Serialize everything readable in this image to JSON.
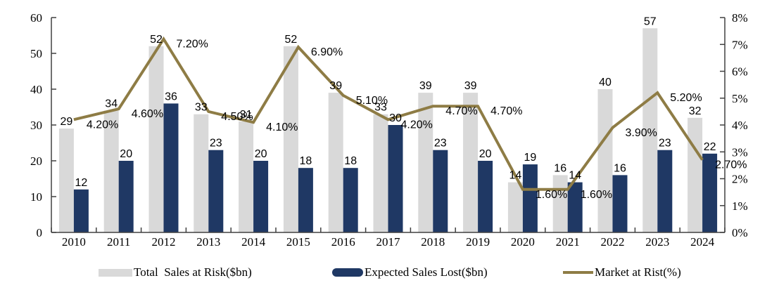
{
  "chart_data": {
    "type": "combo-bar-line",
    "title": "",
    "categories": [
      "2010",
      "2011",
      "2012",
      "2013",
      "2014",
      "2015",
      "2016",
      "2017",
      "2018",
      "2019",
      "2020",
      "2021",
      "2022",
      "2023",
      "2024"
    ],
    "series": [
      {
        "name": "Total  Sales at Risk($bn)",
        "type": "bar",
        "axis": "left",
        "color": "#D9D9D9",
        "values": [
          29,
          34,
          52,
          33,
          31,
          52,
          39,
          33,
          39,
          39,
          14,
          16,
          40,
          57,
          32
        ]
      },
      {
        "name": "Expected Sales Lost($bn)",
        "type": "bar",
        "axis": "left",
        "color": "#1F3864",
        "values": [
          12,
          20,
          36,
          23,
          20,
          18,
          18,
          30,
          23,
          20,
          19,
          14,
          16,
          23,
          22
        ]
      },
      {
        "name": "Market at Rist(%)",
        "type": "line",
        "axis": "right",
        "color": "#8E7C45",
        "values": [
          4.2,
          4.6,
          7.2,
          4.5,
          4.1,
          6.9,
          5.1,
          4.2,
          4.7,
          4.7,
          1.6,
          1.6,
          3.9,
          5.2,
          2.7
        ],
        "labels": [
          "4.20%",
          "4.60%",
          "7.20%",
          "4.50%",
          "4.10%",
          "6.90%",
          "5.10%",
          "4.20%",
          "4.70%",
          "4.70%",
          "1.60%",
          "1.60%",
          "3.90%",
          "5.20%",
          "2.70%"
        ]
      }
    ],
    "left_axis": {
      "min": 0,
      "max": 60,
      "ticks": [
        "0",
        "10",
        "20",
        "30",
        "40",
        "50",
        "60"
      ]
    },
    "right_axis": {
      "min": 0,
      "max": 8,
      "ticks": [
        "0%",
        "1%",
        "2%",
        "3%",
        "4%",
        "5%",
        "6%",
        "7%",
        "8%"
      ]
    },
    "grid": false,
    "legend_position": "bottom",
    "axis_color": "#404040"
  }
}
